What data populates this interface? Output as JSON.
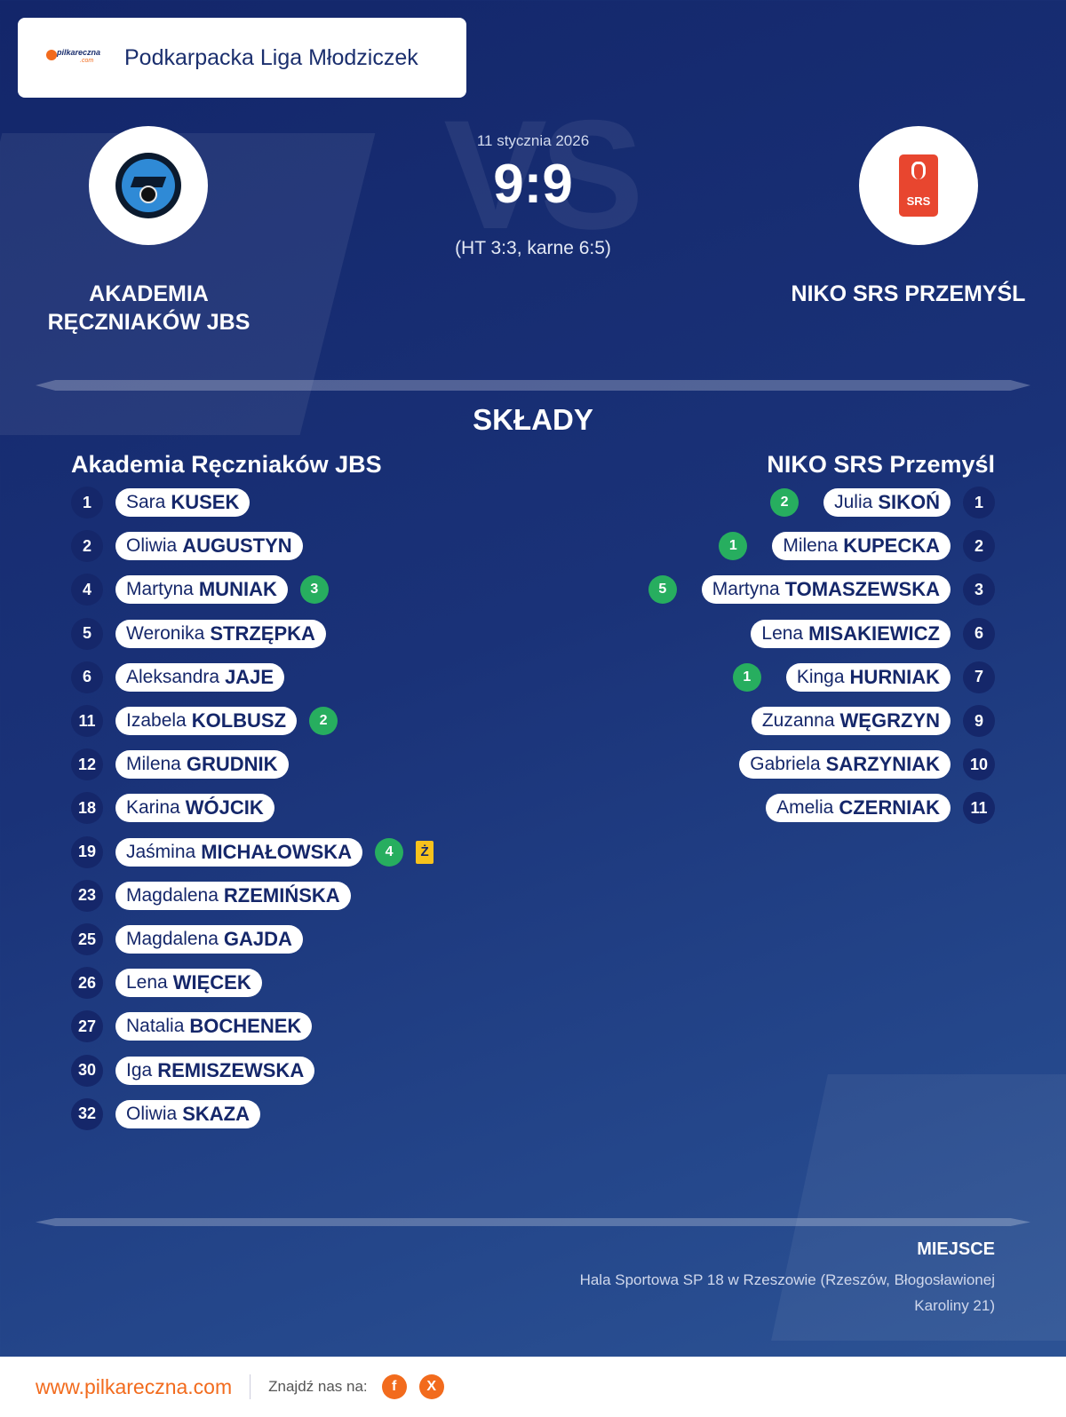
{
  "brand": {
    "logo_text": "pilkareczna",
    "logo_domain": ".com",
    "url": "www.pilkareczna.com"
  },
  "league": "Podkarpacka Liga Młodziczek",
  "match": {
    "date": "11 stycznia 2026",
    "score": "9:9",
    "score_detail": "(HT 3:3, karne 6:5)",
    "vs": "VS"
  },
  "home": {
    "name_upper_line1": "AKADEMIA",
    "name_upper_line2": "RĘCZNIAKÓW JBS",
    "name": "Akademia Ręczniaków JBS",
    "players": [
      {
        "number": "1",
        "first": "Sara",
        "last": "KUSEK"
      },
      {
        "number": "2",
        "first": "Oliwia",
        "last": "AUGUSTYN"
      },
      {
        "number": "4",
        "first": "Martyna",
        "last": "MUNIAK",
        "goals": "3"
      },
      {
        "number": "5",
        "first": "Weronika",
        "last": "STRZĘPKA"
      },
      {
        "number": "6",
        "first": "Aleksandra",
        "last": "JAJE"
      },
      {
        "number": "11",
        "first": "Izabela",
        "last": "KOLBUSZ",
        "goals": "2"
      },
      {
        "number": "12",
        "first": "Milena",
        "last": "GRUDNIK"
      },
      {
        "number": "18",
        "first": "Karina",
        "last": "WÓJCIK"
      },
      {
        "number": "19",
        "first": "Jaśmina",
        "last": "MICHAŁOWSKA",
        "goals": "4",
        "card": "Ż"
      },
      {
        "number": "23",
        "first": "Magdalena",
        "last": "RZEMIŃSKA"
      },
      {
        "number": "25",
        "first": "Magdalena",
        "last": "GAJDA"
      },
      {
        "number": "26",
        "first": "Lena",
        "last": "WIĘCEK"
      },
      {
        "number": "27",
        "first": "Natalia",
        "last": "BOCHENEK"
      },
      {
        "number": "30",
        "first": "Iga",
        "last": "REMISZEWSKA"
      },
      {
        "number": "32",
        "first": "Oliwia",
        "last": "SKAZA"
      }
    ]
  },
  "away": {
    "name_upper": "NIKO SRS PRZEMYŚL",
    "name": "NIKO SRS Przemyśl",
    "crest_text": "SRS",
    "players": [
      {
        "number": "1",
        "first": "Julia",
        "last": "SIKOŃ",
        "goals": "2"
      },
      {
        "number": "2",
        "first": "Milena",
        "last": "KUPECKA",
        "goals": "1"
      },
      {
        "number": "3",
        "first": "Martyna",
        "last": "TOMASZEWSKA",
        "goals": "5"
      },
      {
        "number": "6",
        "first": "Lena",
        "last": "MISAKIEWICZ"
      },
      {
        "number": "7",
        "first": "Kinga",
        "last": "HURNIAK",
        "goals": "1"
      },
      {
        "number": "9",
        "first": "Zuzanna",
        "last": "WĘGRZYN"
      },
      {
        "number": "10",
        "first": "Gabriela",
        "last": "SARZYNIAK"
      },
      {
        "number": "11",
        "first": "Amelia",
        "last": "CZERNIAK"
      }
    ]
  },
  "section_title": "SKŁADY",
  "venue": {
    "label": "MIEJSCE",
    "line1": "Hala Sportowa SP 18 w Rzeszowie (Rzeszów, Błogosławionej",
    "line2": "Karoliny 21)"
  },
  "footer": {
    "find_us": "Znajdź nas na:",
    "facebook": "f",
    "x": "X"
  }
}
